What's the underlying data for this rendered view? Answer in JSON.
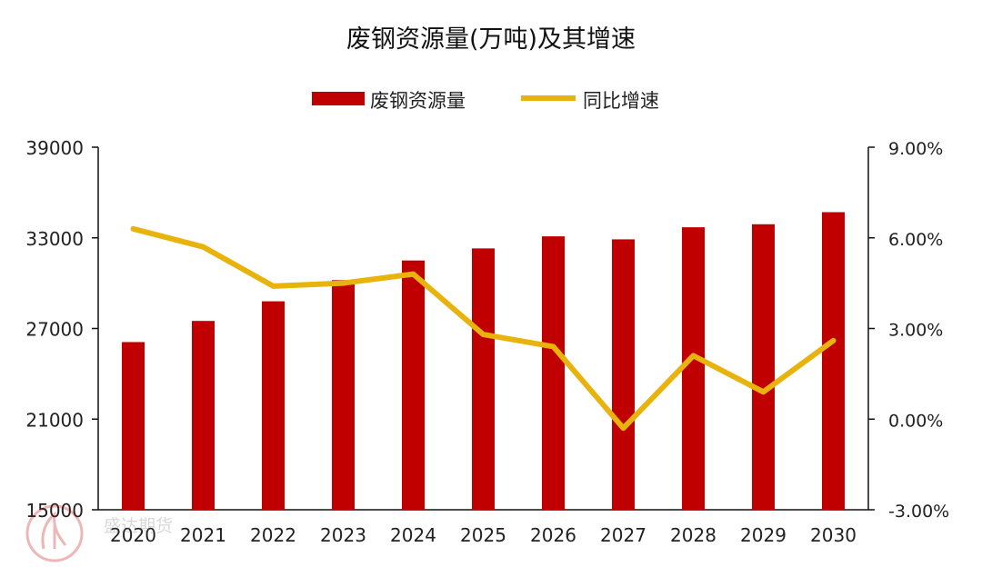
{
  "chart_data": {
    "type": "bar",
    "title": "废钢资源量(万吨)及其增速",
    "categories": [
      "2020",
      "2021",
      "2022",
      "2023",
      "2024",
      "2025",
      "2026",
      "2027",
      "2028",
      "2029",
      "2030"
    ],
    "series": [
      {
        "name": "废钢资源量",
        "type": "bar",
        "axis": "left",
        "color": "#C00000",
        "values": [
          26100,
          27500,
          28800,
          30200,
          31500,
          32300,
          33100,
          32900,
          33700,
          33900,
          34700
        ]
      },
      {
        "name": "同比增速",
        "type": "line",
        "axis": "right",
        "color": "#E8B30C",
        "values": [
          6.3,
          5.7,
          4.4,
          4.5,
          4.8,
          2.8,
          2.4,
          -0.3,
          2.1,
          0.9,
          2.6
        ]
      }
    ],
    "y_left": {
      "range": [
        15000,
        39000
      ],
      "ticks": [
        "15000",
        "21000",
        "27000",
        "33000",
        "39000"
      ]
    },
    "y_right": {
      "range": [
        -3,
        9
      ],
      "ticks": [
        "-3.00%",
        "0.00%",
        "3.00%",
        "6.00%",
        "9.00%"
      ]
    },
    "legend_position": "top-center",
    "grid": false
  },
  "watermark": {
    "text": "盛达期货"
  }
}
